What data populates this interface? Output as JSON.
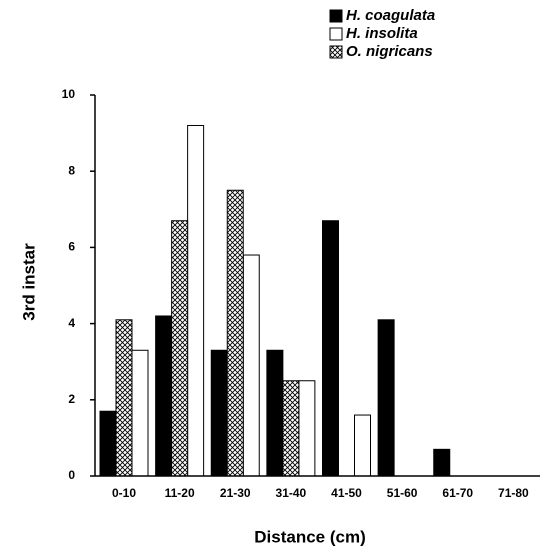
{
  "chart_data": {
    "type": "bar",
    "x_label": "Distance (cm)",
    "y_label": "3rd instar",
    "categories": [
      "0-10",
      "11-20",
      "21-30",
      "31-40",
      "41-50",
      "51-60",
      "61-70",
      "71-80"
    ],
    "series": [
      {
        "name": "H. coagulata",
        "color": "#000000",
        "values": [
          1.7,
          4.2,
          3.3,
          3.3,
          6.7,
          4.1,
          0.7,
          0
        ]
      },
      {
        "name": "H. insolita",
        "color": "#ffffff",
        "values": [
          3.3,
          9.2,
          5.8,
          2.5,
          1.6,
          0,
          0,
          0
        ]
      },
      {
        "name": "O. nigricans",
        "color": "url(#crosshatch)",
        "values": [
          4.1,
          6.7,
          7.5,
          2.5,
          0,
          0,
          0,
          0
        ]
      }
    ],
    "ylim": [
      0,
      10
    ],
    "yticks": [
      0,
      2,
      4,
      6,
      8,
      10
    ],
    "grid": false,
    "legend": "top-right"
  }
}
